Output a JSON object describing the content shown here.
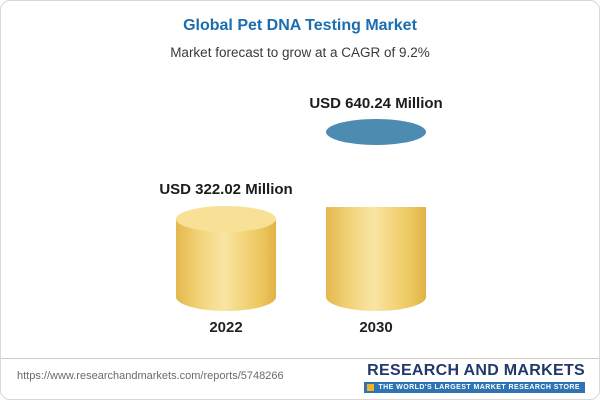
{
  "header": {
    "title": "Global Pet DNA Testing Market",
    "subtitle": "Market forecast to grow at a CAGR of 9.2%"
  },
  "chart_data": {
    "type": "bar",
    "title": "Global Pet DNA Testing Market",
    "subtitle": "Market forecast to grow at a CAGR of 9.2%",
    "categories": [
      "2022",
      "2030"
    ],
    "values": [
      322.02,
      640.24
    ],
    "unit": "USD Million",
    "value_labels": [
      "USD 322.02 Million",
      "USD 640.24 Million"
    ],
    "cagr": "9.2%",
    "grid": false,
    "legend_position": "none",
    "bar_style": "3d-cylinder",
    "bar_colors": {
      "2022": [
        "#f3d271"
      ],
      "2030_bottom": "#f3d271",
      "2030_top": "#3e7ca4"
    }
  },
  "footer": {
    "url": "https://www.researchandmarkets.com/reports/5748266",
    "logo_text": "RESEARCH AND MARKETS",
    "logo_tagline": "THE WORLD'S LARGEST MARKET RESEARCH STORE"
  },
  "colors": {
    "title_blue": "#1b6db0",
    "bar_yellow": "#f3d271",
    "bar_blue": "#3e7ca4",
    "logo_navy": "#21386b",
    "tagline_bg": "#2e74b5",
    "tagline_gold": "#f0b429"
  }
}
